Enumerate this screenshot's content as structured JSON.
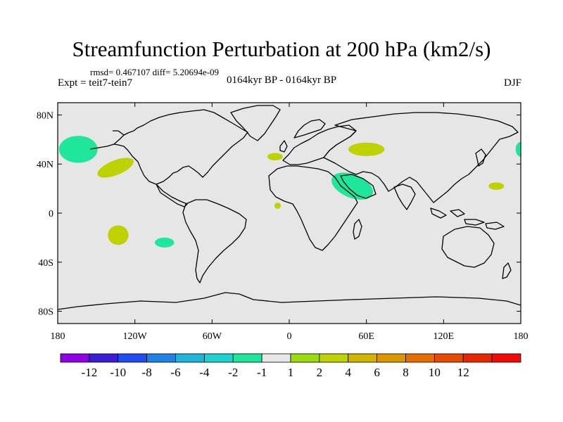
{
  "title": "Streamfunction Perturbation at 200 hPa (km2/s)",
  "stats": "rmsd= 0.467107 diff= 5.20694e-09",
  "experiment": "Expt = teit7-tein7",
  "period": "0164kyr BP - 0164kyr BP",
  "season": "DJF",
  "colors": {
    "background": "#e6e6e6",
    "coastline": "#000000"
  },
  "map": {
    "lon_range": [
      -180,
      180
    ],
    "lat_range": [
      -90,
      90
    ],
    "lat_ticks": [
      {
        "value": 80,
        "label": "80N"
      },
      {
        "value": 40,
        "label": "40N"
      },
      {
        "value": 0,
        "label": "0"
      },
      {
        "value": -40,
        "label": "40S"
      },
      {
        "value": -80,
        "label": "80S"
      }
    ],
    "lon_ticks": [
      {
        "value": -180,
        "label": "180"
      },
      {
        "value": -120,
        "label": "120W"
      },
      {
        "value": -60,
        "label": "60W"
      },
      {
        "value": 0,
        "label": "0"
      },
      {
        "value": 60,
        "label": "60E"
      },
      {
        "value": 120,
        "label": "120E"
      },
      {
        "value": 180,
        "label": "180"
      }
    ],
    "anomalies": [
      {
        "name": "north-pacific-negative-anomaly",
        "lon": -164,
        "lat": 52,
        "rlon": 15,
        "rlat": 11,
        "level": -2
      },
      {
        "name": "northeast-pacific-positive-anomaly",
        "lon": -135,
        "lat": 37,
        "rlon": 15,
        "rlat": 6,
        "rot": -22,
        "level": 2
      },
      {
        "name": "south-pacific-positive-anomaly",
        "lon": -133,
        "lat": -18,
        "rlon": 8,
        "rlat": 8,
        "level": 2
      },
      {
        "name": "southeast-pacific-negative-anomaly",
        "lon": -97,
        "lat": -24,
        "rlon": 7.5,
        "rlat": 4,
        "level": -2
      },
      {
        "name": "north-atlantic-positive-anomaly",
        "lon": -11,
        "lat": 46,
        "rlon": 6,
        "rlat": 3,
        "level": 2
      },
      {
        "name": "gulf-of-guinea-positive-anomaly",
        "lon": -9,
        "lat": 6,
        "rlon": 2.5,
        "rlat": 2.5,
        "level": 2
      },
      {
        "name": "central-asia-positive-anomaly",
        "lon": 60,
        "lat": 52,
        "rlon": 14,
        "rlat": 5.5,
        "level": 2
      },
      {
        "name": "middle-east-negative-anomaly",
        "lon": 49,
        "lat": 22,
        "rlon": 17,
        "rlat": 9.5,
        "rot": 22,
        "level": -2
      },
      {
        "name": "west-pacific-positive-anomaly",
        "lon": 161,
        "lat": 22,
        "rlon": 6,
        "rlat": 3,
        "level": 2
      },
      {
        "name": "dateline-negative-anomaly",
        "lon": 180,
        "lat": 52,
        "rlon": 4,
        "rlat": 6,
        "level": -2
      }
    ]
  },
  "colorbar": {
    "colors": [
      "#8f00e6",
      "#3c1ed2",
      "#1e4ef0",
      "#1f82e6",
      "#1eb4dc",
      "#1ed2d2",
      "#1ee69b",
      "#e6e6e6",
      "#9bdc0f",
      "#bed200",
      "#d2b400",
      "#dc9600",
      "#e66e00",
      "#e64b00",
      "#e62800",
      "#f00a0a"
    ],
    "labels": [
      "-12",
      "-10",
      "-8",
      "-6",
      "-4",
      "-2",
      "-1",
      "1",
      "2",
      "4",
      "6",
      "8",
      "10",
      "12"
    ],
    "levels": [
      -12,
      -10,
      -8,
      -6,
      -4,
      -2,
      -1,
      1,
      2,
      4,
      6,
      8,
      10,
      12
    ]
  }
}
